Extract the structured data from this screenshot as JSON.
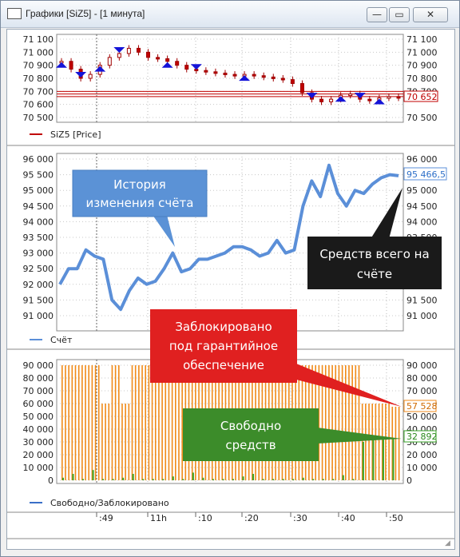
{
  "window": {
    "title": "Графики [SiZ5] - [1 минута]",
    "minimize_label": "—",
    "restore_label": "▭",
    "close_label": "✕"
  },
  "colors": {
    "price_line": "#c00000",
    "balance_line": "#5b8fd8",
    "blocked_bar": "#f08a18",
    "free_bar": "#3aa428",
    "callout_blue": "#5b92d6",
    "callout_black": "#1a1a1a",
    "callout_red": "#e02020",
    "callout_green": "#3c8c2a",
    "arrow_blue": "#1414d8"
  },
  "panels": {
    "price": {
      "ticks": [
        "71 100",
        "71 000",
        "70 900",
        "70 800",
        "70 700",
        "70 600",
        "70 500"
      ],
      "right_ticks": [
        "71 100",
        "71 000",
        "70 900",
        "70 800",
        "70 700",
        "70 500"
      ],
      "current_value": "70 652",
      "legend": "SiZ5 [Price]"
    },
    "account": {
      "ticks": [
        "96 000",
        "95 500",
        "95 000",
        "94 500",
        "94 000",
        "93 500",
        "93 000",
        "92 500",
        "92 000",
        "91 500",
        "91 000"
      ],
      "right_ticks": [
        "96 000",
        "95 000",
        "94 500",
        "94 000",
        "93 500",
        "93 000",
        "92 500",
        "92 000",
        "91 500",
        "91 000"
      ],
      "current_value": "95 466,5",
      "legend": "Счёт"
    },
    "funds": {
      "ticks": [
        "90 000",
        "80 000",
        "70 000",
        "60 000",
        "50 000",
        "40 000",
        "30 000",
        "20 000",
        "10 000",
        "0"
      ],
      "blocked_value": "57 528",
      "free_value": "32 892",
      "legend": "Свободно/Заблокировано"
    }
  },
  "time_axis": [
    ":49",
    "11h",
    ":10",
    ":20",
    ":30",
    ":40",
    ":50"
  ],
  "callouts": {
    "history": "История изменения счёта",
    "total": "Средств всего на счёте",
    "blocked": "Заблокировано под гарантийное обеспечение",
    "free": "Свободно средств"
  },
  "chart_data": [
    {
      "type": "line",
      "legend": "SiZ5 [Price]",
      "ylim": [
        70500,
        71100
      ],
      "series": [
        {
          "name": "SiZ5 [Price]",
          "values": [
            70930,
            70870,
            70800,
            70830,
            70900,
            70960,
            70990,
            71030,
            71000,
            70960,
            70950,
            70930,
            70900,
            70870,
            70860,
            70850,
            70840,
            70830,
            70820,
            70830,
            70820,
            70810,
            70800,
            70790,
            70760,
            70690,
            70640,
            70620,
            70640,
            70670,
            70680,
            70640,
            70630,
            70650,
            70660,
            70650
          ]
        }
      ],
      "current": 70652
    },
    {
      "type": "line",
      "legend": "Счёт",
      "ylim": [
        91000,
        96000
      ],
      "series": [
        {
          "name": "Счёт",
          "values": [
            92000,
            92500,
            92500,
            93100,
            92900,
            92800,
            91500,
            91200,
            91800,
            92200,
            92000,
            92100,
            92500,
            93000,
            92400,
            92500,
            92800,
            92800,
            92900,
            93000,
            93200,
            93200,
            93100,
            92900,
            93000,
            93400,
            93000,
            93100,
            94500,
            95300,
            94800,
            95800,
            94900,
            94500,
            95000,
            94900,
            95200,
            95400,
            95500,
            95466.5
          ]
        }
      ],
      "current": 95466.5
    },
    {
      "type": "bar",
      "legend": "Свободно/Заблокировано",
      "ylim": [
        0,
        90000
      ],
      "series": [
        {
          "name": "Заблокировано",
          "values": [
            90000,
            90000,
            90000,
            90000,
            60000,
            90000,
            60000,
            90000,
            90000,
            90000,
            90000,
            90000,
            90000,
            90000,
            90000,
            90000,
            90000,
            90000,
            90000,
            90000,
            90000,
            90000,
            90000,
            90000,
            90000,
            90000,
            90000,
            90000,
            90000,
            90000,
            60000,
            60000,
            60000,
            57528
          ]
        },
        {
          "name": "Свободно",
          "values": [
            2000,
            5000,
            1000,
            8000,
            1000,
            1000,
            2000,
            5000,
            1000,
            1000,
            1000,
            3000,
            1000,
            6000,
            2000,
            1000,
            1000,
            1000,
            3000,
            5000,
            1000,
            1000,
            1000,
            1000,
            2000,
            1000,
            1000,
            1000,
            4000,
            1000,
            30000,
            32000,
            32000,
            32892
          ]
        }
      ]
    }
  ]
}
